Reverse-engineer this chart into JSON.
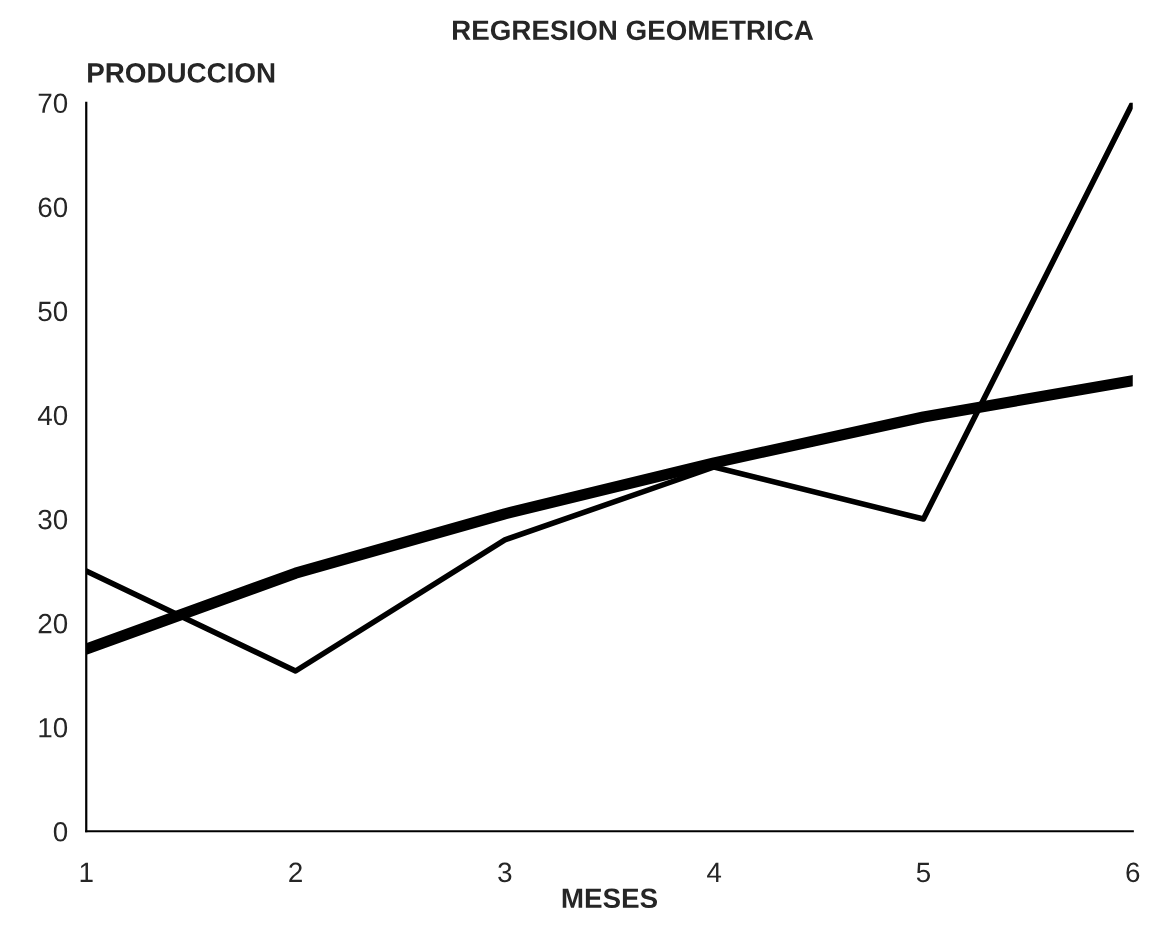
{
  "chart_data": {
    "type": "line",
    "title": "REGRESION GEOMETRICA",
    "xlabel": "MESES",
    "ylabel": "PRODUCCION",
    "x": [
      1,
      2,
      3,
      4,
      5,
      6
    ],
    "series": [
      {
        "color": "#000000",
        "values": [
          25,
          15.4,
          28,
          35,
          30,
          70
        ]
      },
      {
        "color": "#000000",
        "values": [
          17.5,
          24.8,
          30.5,
          35.4,
          39.8,
          43.3
        ]
      }
    ],
    "xlim": [
      1,
      6
    ],
    "xticks": [
      1,
      2,
      3,
      4,
      5,
      6
    ],
    "ylim": [
      0,
      70
    ],
    "yticks": [
      0,
      10,
      20,
      30,
      40,
      50,
      60,
      70
    ],
    "grid": false,
    "legend": false,
    "marker": "none",
    "line_style": "solid"
  }
}
